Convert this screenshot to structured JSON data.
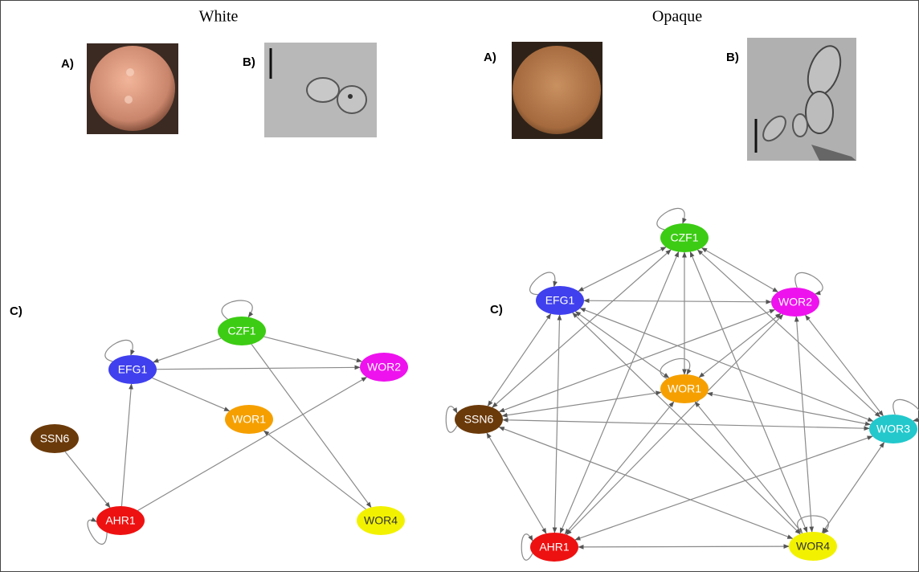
{
  "white": {
    "title": "White",
    "panel_a": "A)",
    "panel_b": "B)",
    "panel_c": "C)",
    "nodes": [
      {
        "label": "CZF1",
        "color": "#3ccc14"
      },
      {
        "label": "EFG1",
        "color": "#4040ee"
      },
      {
        "label": "WOR2",
        "color": "#ee12ee"
      },
      {
        "label": "WOR1",
        "color": "#f5a000"
      },
      {
        "label": "SSN6",
        "color": "#6b3a0a"
      },
      {
        "label": "AHR1",
        "color": "#ee1111"
      },
      {
        "label": "WOR4",
        "color": "#f2f200"
      }
    ]
  },
  "opaque": {
    "title": "Opaque",
    "panel_a": "A)",
    "panel_b": "B)",
    "panel_c": "C)",
    "nodes": [
      {
        "label": "CZF1",
        "color": "#3ccc14"
      },
      {
        "label": "EFG1",
        "color": "#4040ee"
      },
      {
        "label": "WOR2",
        "color": "#ee12ee"
      },
      {
        "label": "WOR1",
        "color": "#f5a000"
      },
      {
        "label": "SSN6",
        "color": "#6b3a0a"
      },
      {
        "label": "WOR3",
        "color": "#22c8cc"
      },
      {
        "label": "AHR1",
        "color": "#ee1111"
      },
      {
        "label": "WOR4",
        "color": "#f2f200"
      }
    ]
  }
}
